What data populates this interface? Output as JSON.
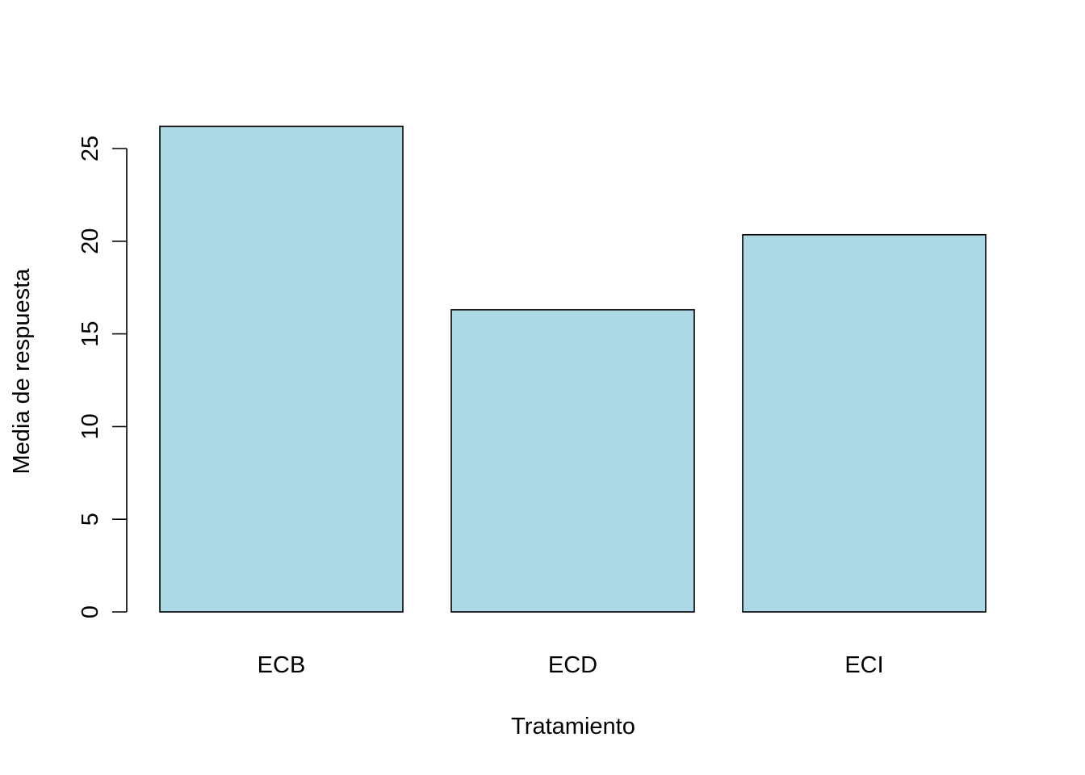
{
  "chart_data": {
    "type": "bar",
    "title": "",
    "xlabel": "Tratamiento",
    "ylabel": "Media de respuesta",
    "categories": [
      "ECB",
      "ECD",
      "ECI"
    ],
    "values": [
      26.2,
      16.3,
      20.35
    ],
    "ylim": [
      0,
      25
    ],
    "yticks": [
      "0",
      "5",
      "10",
      "15",
      "20",
      "25"
    ],
    "bar_color": "#add8e6",
    "border_color": "#000000",
    "grid": false,
    "legend": "none"
  }
}
